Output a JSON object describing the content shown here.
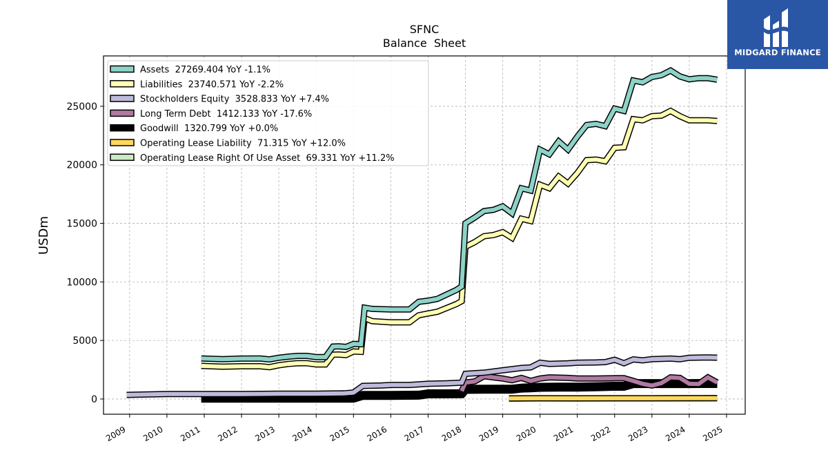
{
  "logo": {
    "text": "MIDGARD FINANCE",
    "color": "#2a56a6"
  },
  "chart_data": {
    "type": "line",
    "title": "SFNC",
    "subtitle": "Balance  Sheet",
    "ylabel": "USDm",
    "xlim": [
      2008.3,
      2025.5
    ],
    "ylim": [
      -1300,
      29300
    ],
    "yticks": [
      0,
      5000,
      10000,
      15000,
      20000,
      25000
    ],
    "xticks": [
      2009,
      2010,
      2011,
      2012,
      2013,
      2014,
      2015,
      2016,
      2017,
      2018,
      2019,
      2020,
      2021,
      2022,
      2023,
      2024,
      2025
    ],
    "grid": true,
    "legend_position": "top-left",
    "series": [
      {
        "name": "Assets",
        "legend": "Assets  27269.404 YoY -1.1%",
        "color": "#8dd3c7",
        "points": [
          [
            2010.92,
            3460
          ],
          [
            2011.5,
            3400
          ],
          [
            2012.0,
            3450
          ],
          [
            2012.5,
            3460
          ],
          [
            2012.75,
            3380
          ],
          [
            2013.0,
            3520
          ],
          [
            2013.25,
            3620
          ],
          [
            2013.5,
            3680
          ],
          [
            2013.75,
            3680
          ],
          [
            2014.0,
            3580
          ],
          [
            2014.25,
            3580
          ],
          [
            2014.45,
            4480
          ],
          [
            2014.6,
            4500
          ],
          [
            2014.8,
            4450
          ],
          [
            2015.0,
            4700
          ],
          [
            2015.2,
            4680
          ],
          [
            2015.3,
            7800
          ],
          [
            2015.5,
            7700
          ],
          [
            2016.0,
            7650
          ],
          [
            2016.5,
            7650
          ],
          [
            2016.75,
            8300
          ],
          [
            2017.0,
            8400
          ],
          [
            2017.25,
            8550
          ],
          [
            2017.75,
            9300
          ],
          [
            2017.9,
            9600
          ],
          [
            2018.0,
            15000
          ],
          [
            2018.25,
            15500
          ],
          [
            2018.5,
            16050
          ],
          [
            2018.75,
            16150
          ],
          [
            2019.0,
            16450
          ],
          [
            2019.25,
            15850
          ],
          [
            2019.5,
            18000
          ],
          [
            2019.75,
            17800
          ],
          [
            2020.0,
            21300
          ],
          [
            2020.25,
            20900
          ],
          [
            2020.5,
            22000
          ],
          [
            2020.75,
            21300
          ],
          [
            2021.0,
            22400
          ],
          [
            2021.25,
            23400
          ],
          [
            2021.5,
            23500
          ],
          [
            2021.75,
            23300
          ],
          [
            2022.0,
            24800
          ],
          [
            2022.25,
            24600
          ],
          [
            2022.5,
            27200
          ],
          [
            2022.75,
            27050
          ],
          [
            2023.0,
            27500
          ],
          [
            2023.25,
            27650
          ],
          [
            2023.5,
            28050
          ],
          [
            2023.75,
            27550
          ],
          [
            2024.0,
            27300
          ],
          [
            2024.25,
            27400
          ],
          [
            2024.5,
            27400
          ],
          [
            2024.75,
            27269
          ]
        ]
      },
      {
        "name": "Liabilities",
        "legend": "Liabilities  23740.571 YoY -2.2%",
        "color": "#ffffb3",
        "points": [
          [
            2010.92,
            2830
          ],
          [
            2011.5,
            2760
          ],
          [
            2012.0,
            2800
          ],
          [
            2012.5,
            2800
          ],
          [
            2012.75,
            2720
          ],
          [
            2013.0,
            2880
          ],
          [
            2013.25,
            2990
          ],
          [
            2013.5,
            3060
          ],
          [
            2013.75,
            3060
          ],
          [
            2014.0,
            2950
          ],
          [
            2014.25,
            2950
          ],
          [
            2014.45,
            3780
          ],
          [
            2014.6,
            3800
          ],
          [
            2014.8,
            3750
          ],
          [
            2015.0,
            4060
          ],
          [
            2015.2,
            4030
          ],
          [
            2015.3,
            6900
          ],
          [
            2015.5,
            6650
          ],
          [
            2016.0,
            6550
          ],
          [
            2016.5,
            6550
          ],
          [
            2016.75,
            7150
          ],
          [
            2017.0,
            7300
          ],
          [
            2017.25,
            7450
          ],
          [
            2017.75,
            8100
          ],
          [
            2017.9,
            8350
          ],
          [
            2018.0,
            13000
          ],
          [
            2018.25,
            13400
          ],
          [
            2018.5,
            13900
          ],
          [
            2018.75,
            14000
          ],
          [
            2019.0,
            14250
          ],
          [
            2019.25,
            13750
          ],
          [
            2019.5,
            15400
          ],
          [
            2019.75,
            15200
          ],
          [
            2020.0,
            18300
          ],
          [
            2020.25,
            18000
          ],
          [
            2020.5,
            19000
          ],
          [
            2020.75,
            18400
          ],
          [
            2021.0,
            19300
          ],
          [
            2021.25,
            20400
          ],
          [
            2021.5,
            20450
          ],
          [
            2021.75,
            20300
          ],
          [
            2022.0,
            21450
          ],
          [
            2022.25,
            21500
          ],
          [
            2022.5,
            23900
          ],
          [
            2022.75,
            23800
          ],
          [
            2023.0,
            24150
          ],
          [
            2023.25,
            24200
          ],
          [
            2023.5,
            24600
          ],
          [
            2023.75,
            24150
          ],
          [
            2024.0,
            23800
          ],
          [
            2024.25,
            23800
          ],
          [
            2024.5,
            23800
          ],
          [
            2024.75,
            23740
          ]
        ]
      },
      {
        "name": "Stockholders Equity",
        "legend": "Stockholders Equity  3528.833 YoY +7.4%",
        "color": "#bebada",
        "points": [
          [
            2008.92,
            350
          ],
          [
            2010.0,
            430
          ],
          [
            2011.0,
            430
          ],
          [
            2012.0,
            430
          ],
          [
            2013.0,
            450
          ],
          [
            2014.0,
            450
          ],
          [
            2014.75,
            480
          ],
          [
            2015.0,
            550
          ],
          [
            2015.25,
            1120
          ],
          [
            2015.75,
            1150
          ],
          [
            2016.0,
            1200
          ],
          [
            2016.5,
            1200
          ],
          [
            2017.0,
            1300
          ],
          [
            2017.5,
            1340
          ],
          [
            2017.9,
            1400
          ],
          [
            2018.0,
            2150
          ],
          [
            2018.5,
            2250
          ],
          [
            2019.0,
            2450
          ],
          [
            2019.5,
            2650
          ],
          [
            2019.75,
            2700
          ],
          [
            2020.0,
            3100
          ],
          [
            2020.25,
            3000
          ],
          [
            2020.75,
            3050
          ],
          [
            2021.0,
            3100
          ],
          [
            2021.5,
            3120
          ],
          [
            2021.75,
            3150
          ],
          [
            2022.0,
            3350
          ],
          [
            2022.25,
            3050
          ],
          [
            2022.5,
            3380
          ],
          [
            2022.75,
            3300
          ],
          [
            2023.0,
            3400
          ],
          [
            2023.5,
            3450
          ],
          [
            2023.75,
            3400
          ],
          [
            2024.0,
            3520
          ],
          [
            2024.5,
            3550
          ],
          [
            2024.75,
            3529
          ]
        ]
      },
      {
        "name": "Long Term Debt",
        "legend": "Long Term Debt  1412.133 YoY -17.6%",
        "color": "#b07aa1",
        "points": [
          [
            2017.9,
            680
          ],
          [
            2018.0,
            1400
          ],
          [
            2018.25,
            1500
          ],
          [
            2018.5,
            1950
          ],
          [
            2018.75,
            1850
          ],
          [
            2019.0,
            1750
          ],
          [
            2019.25,
            1600
          ],
          [
            2019.5,
            1800
          ],
          [
            2019.75,
            1550
          ],
          [
            2020.0,
            1750
          ],
          [
            2020.25,
            1850
          ],
          [
            2020.75,
            1800
          ],
          [
            2021.0,
            1750
          ],
          [
            2021.5,
            1750
          ],
          [
            2022.0,
            1780
          ],
          [
            2022.25,
            1780
          ],
          [
            2022.5,
            1550
          ],
          [
            2022.75,
            1300
          ],
          [
            2023.0,
            1150
          ],
          [
            2023.25,
            1350
          ],
          [
            2023.5,
            1850
          ],
          [
            2023.75,
            1800
          ],
          [
            2024.0,
            1300
          ],
          [
            2024.25,
            1280
          ],
          [
            2024.5,
            1850
          ],
          [
            2024.75,
            1412
          ]
        ]
      },
      {
        "name": "Goodwill",
        "legend": "Goodwill  1320.799 YoY +0.0%",
        "color": "#000000",
        "points": [
          [
            2010.92,
            70
          ],
          [
            2012.0,
            70
          ],
          [
            2013.0,
            70
          ],
          [
            2014.0,
            70
          ],
          [
            2015.0,
            70
          ],
          [
            2015.25,
            310
          ],
          [
            2016.0,
            310
          ],
          [
            2016.75,
            330
          ],
          [
            2017.0,
            440
          ],
          [
            2017.9,
            450
          ],
          [
            2018.0,
            820
          ],
          [
            2018.5,
            840
          ],
          [
            2019.0,
            840
          ],
          [
            2019.25,
            840
          ],
          [
            2019.5,
            930
          ],
          [
            2019.75,
            960
          ],
          [
            2020.0,
            1000
          ],
          [
            2020.5,
            1020
          ],
          [
            2021.0,
            1020
          ],
          [
            2021.5,
            1040
          ],
          [
            2022.0,
            1090
          ],
          [
            2022.25,
            1090
          ],
          [
            2022.5,
            1320
          ],
          [
            2023.0,
            1320
          ],
          [
            2024.0,
            1320
          ],
          [
            2024.75,
            1321
          ]
        ]
      },
      {
        "name": "Operating Lease Liability",
        "legend": "Operating Lease Liability  71.315 YoY +12.0%",
        "color": "#fdd95a",
        "points": [
          [
            2019.17,
            50
          ],
          [
            2020.0,
            60
          ],
          [
            2021.0,
            55
          ],
          [
            2022.0,
            60
          ],
          [
            2023.0,
            63
          ],
          [
            2024.0,
            66
          ],
          [
            2024.75,
            71
          ]
        ]
      },
      {
        "name": "Operating Lease Right Of Use Asset",
        "legend": "Operating Lease Right Of Use Asset  69.331 YoY +11.2%",
        "color": "#ccebc5",
        "points": [
          [
            2019.17,
            45
          ],
          [
            2020.0,
            55
          ],
          [
            2021.0,
            50
          ],
          [
            2022.0,
            55
          ],
          [
            2023.0,
            58
          ],
          [
            2024.0,
            62
          ],
          [
            2024.75,
            69
          ]
        ]
      }
    ]
  }
}
